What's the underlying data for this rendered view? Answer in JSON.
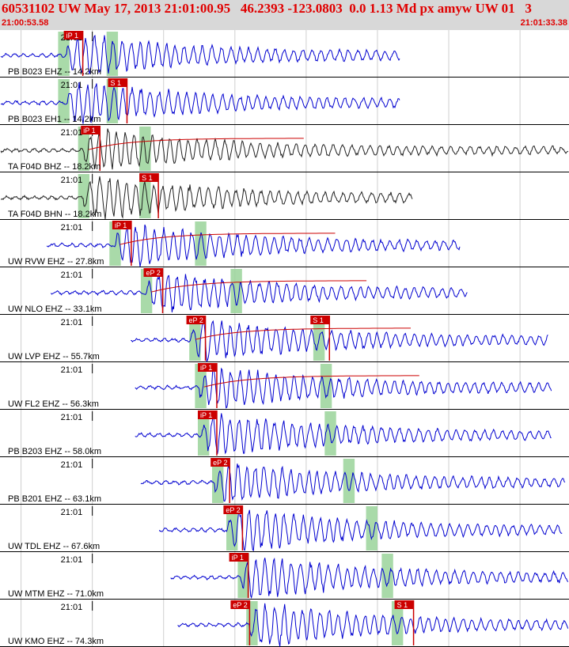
{
  "header": {
    "title": "60531102 UW May 17, 2013 21:01:00.95   46.2393 -123.0803  0.0 1.13 Md px amyw UW 01   3",
    "start_time": "21:00:53.58",
    "end_time": "21:01:33.38"
  },
  "chart_data": {
    "type": "line",
    "title": "60531102 UW May 17, 2013 21:01:00.95   46.2393 -123.0803  0.0 1.13 Md px amyw UW 01   3",
    "time_range": [
      "21:00:53.58",
      "21:01:33.38"
    ],
    "time_range_seconds": [
      53.58,
      93.38
    ],
    "minute_label": "21:01",
    "grid": true,
    "colors": {
      "trace_blue": "#0000d0",
      "trace_black": "#202020",
      "pick": "#cc0000",
      "window": "#9ad49a",
      "coda": "#cc0000",
      "header_bg": "#d8d8d8",
      "title": "#e00000"
    },
    "channels": [
      {
        "label": "PB B023 EHZ -- 14.2km",
        "color": "#0000d0",
        "data_start": 53.58,
        "data_end": 81.6,
        "onset": 58.2,
        "picks": [
          {
            "label": "iP 1",
            "time": 58.0
          }
        ],
        "windows": [
          [
            57.6,
            58.4
          ],
          [
            61.0,
            61.8
          ]
        ]
      },
      {
        "label": "PB B023 EH1 -- 14.2km",
        "color": "#0000d0",
        "data_start": 53.58,
        "data_end": 81.6,
        "onset": 58.2,
        "picks": [
          {
            "label": "S 1",
            "time": 61.1
          }
        ],
        "windows": [
          [
            57.6,
            58.4
          ],
          [
            61.0,
            61.8
          ]
        ]
      },
      {
        "label": "TA F04D BHZ -- 18.2km",
        "color": "#202020",
        "data_start": 53.58,
        "data_end": 93.38,
        "onset": 59.4,
        "picks": [
          {
            "label": "iP 1",
            "time": 59.2
          }
        ],
        "windows": [
          [
            59.0,
            59.8
          ],
          [
            63.3,
            64.1
          ]
        ],
        "coda": true
      },
      {
        "label": "TA F04D BHN -- 18.2km",
        "color": "#202020",
        "data_start": 53.58,
        "data_end": 82.5,
        "onset": 59.4,
        "picks": [
          {
            "label": "S 1",
            "time": 63.3
          }
        ],
        "windows": [
          [
            59.0,
            59.8
          ],
          [
            63.3,
            64.1
          ]
        ]
      },
      {
        "label": "UW RVW EHZ -- 27.8km",
        "color": "#0000d0",
        "data_start": 56.8,
        "data_end": 85.8,
        "onset": 61.6,
        "picks": [
          {
            "label": "iP 1",
            "time": 61.4
          }
        ],
        "windows": [
          [
            61.2,
            62.0
          ],
          [
            67.2,
            68.0
          ]
        ],
        "coda": true
      },
      {
        "label": "UW NLO EHZ -- 33.1km",
        "color": "#0000d0",
        "data_start": 57.1,
        "data_end": 86.3,
        "onset": 63.8,
        "picks": [
          {
            "label": "eP 2",
            "time": 63.6
          }
        ],
        "windows": [
          [
            63.4,
            64.2
          ],
          [
            69.7,
            70.5
          ]
        ],
        "coda": true
      },
      {
        "label": "UW LVP EHZ -- 55.7km",
        "color": "#0000d0",
        "data_start": 62.7,
        "data_end": 92.0,
        "onset": 66.9,
        "picks": [
          {
            "label": "eP 2",
            "time": 66.6
          },
          {
            "label": "S 1",
            "time": 75.3
          }
        ],
        "windows": [
          [
            66.8,
            67.6
          ],
          [
            75.5,
            76.3
          ]
        ],
        "coda": true
      },
      {
        "label": "UW FL2 EHZ -- 56.3km",
        "color": "#0000d0",
        "data_start": 63.0,
        "data_end": 92.2,
        "onset": 67.5,
        "picks": [
          {
            "label": "iP 1",
            "time": 67.4
          }
        ],
        "windows": [
          [
            67.2,
            68.0
          ],
          [
            76.0,
            76.8
          ]
        ],
        "coda": true
      },
      {
        "label": "PB B203 EHZ -- 58.0km",
        "color": "#0000d0",
        "data_start": 63.0,
        "data_end": 92.2,
        "onset": 67.7,
        "picks": [
          {
            "label": "iP 1",
            "time": 67.4
          }
        ],
        "windows": [
          [
            67.4,
            68.2
          ],
          [
            76.3,
            77.1
          ]
        ]
      },
      {
        "label": "PB B201 EHZ -- 63.1km",
        "color": "#0000d0",
        "data_start": 63.4,
        "data_end": 93.2,
        "onset": 68.6,
        "picks": [
          {
            "label": "eP 2",
            "time": 68.3
          }
        ],
        "windows": [
          [
            68.4,
            69.2
          ],
          [
            77.6,
            78.4
          ]
        ]
      },
      {
        "label": "UW TDL EHZ -- 67.6km",
        "color": "#0000d0",
        "data_start": 64.7,
        "data_end": 93.0,
        "onset": 69.5,
        "picks": [
          {
            "label": "eP 2",
            "time": 69.2
          }
        ],
        "windows": [
          [
            69.4,
            70.2
          ],
          [
            79.2,
            80.0
          ]
        ]
      },
      {
        "label": "UW MTM EHZ -- 71.0km",
        "color": "#0000d0",
        "data_start": 65.5,
        "data_end": 93.38,
        "onset": 70.4,
        "picks": [
          {
            "label": "iP 1",
            "time": 69.6
          }
        ],
        "windows": [
          [
            70.2,
            71.0
          ],
          [
            80.3,
            81.1
          ]
        ]
      },
      {
        "label": "UW KMO EHZ -- 74.3km",
        "color": "#0000d0",
        "data_start": 66.0,
        "data_end": 93.38,
        "onset": 71.0,
        "picks": [
          {
            "label": "eP 2",
            "time": 69.7
          },
          {
            "label": "S 1",
            "time": 81.2
          }
        ],
        "windows": [
          [
            70.8,
            71.6
          ],
          [
            81.0,
            81.8
          ]
        ]
      }
    ]
  }
}
